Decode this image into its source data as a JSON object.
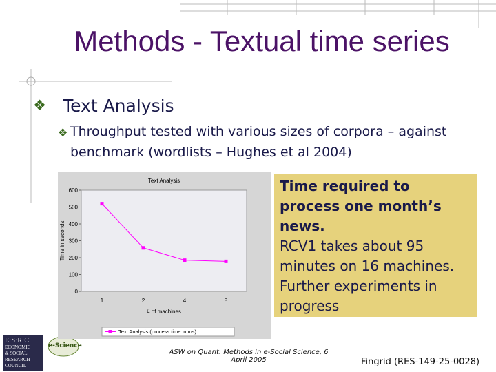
{
  "slide": {
    "title": "Methods - Textual time series",
    "bullet": "Text Analysis",
    "sub_bullet": "Throughput tested with various sizes of corpora – against benchmark (wordlists – Hughes et al 2004)",
    "callout": {
      "bold": "Time required to process one month’s news.",
      "text": "RCV1 takes about 95 minutes on 16 machines. Further experiments in progress"
    },
    "footer": "ASW on Quant. Methods in e-Social Science, 6 April 2005",
    "grant": "Fingrid (RES-149-25-0028)",
    "logos": {
      "esrc": [
        "E·S·R·C",
        "ECONOMIC",
        "& SOCIAL",
        "RESEARCH",
        "COUNCIL"
      ],
      "escience": "e-Science"
    }
  },
  "chart_data": {
    "type": "line",
    "title": "Text Analysis",
    "x_label": "# of machines",
    "y_label": "Time in seconds",
    "categories": [
      "1",
      "2",
      "4",
      "8"
    ],
    "series": [
      {
        "name": "Text Analysis (process time in ms)",
        "color": "#ff00ff",
        "values": [
          520,
          258,
          185,
          178
        ]
      }
    ],
    "ylim": [
      0,
      600
    ],
    "yticks": [
      0,
      100,
      200,
      300,
      400,
      500,
      600
    ],
    "grid": false,
    "legend": "bottom"
  }
}
